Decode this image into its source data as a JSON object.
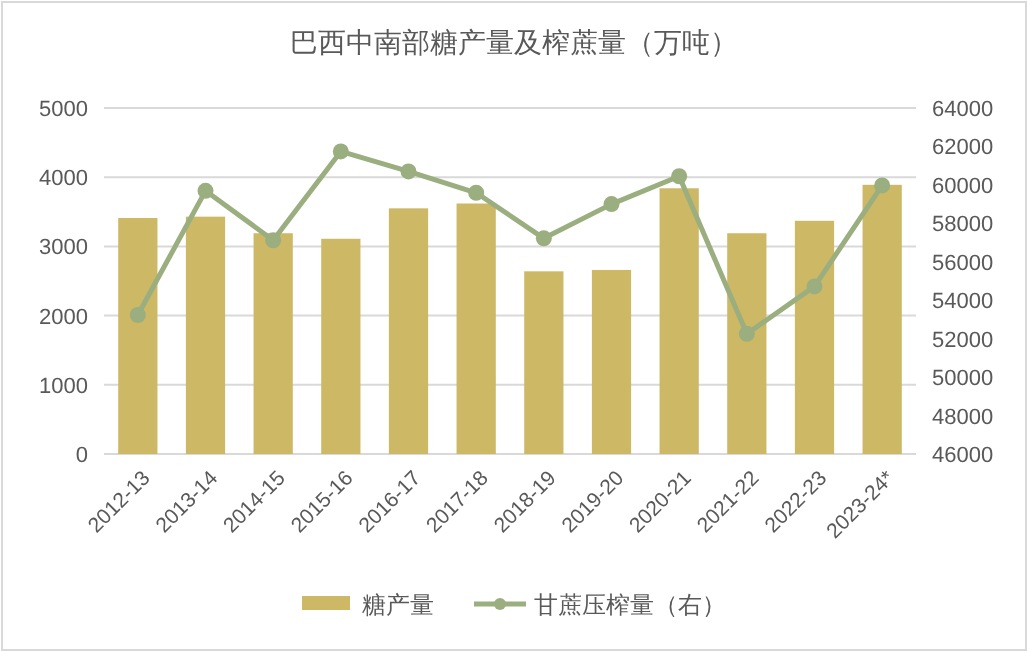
{
  "chart_data": {
    "type": "bar",
    "title": "巴西中南部糖产量及榨蔗量（万吨）",
    "categories": [
      "2012-13",
      "2013-14",
      "2014-15",
      "2015-16",
      "2016-17",
      "2017-18",
      "2018-19",
      "2019-20",
      "2020-21",
      "2021-22",
      "2022-23",
      "2023-24*"
    ],
    "series": [
      {
        "name": "糖产量",
        "color": "#cdb866",
        "values": [
          3410,
          3430,
          3190,
          3110,
          3550,
          3620,
          2640,
          2660,
          3840,
          3190,
          3370,
          3890
        ]
      },
      {
        "name": "甘蔗压榨量（右）",
        "type": "line",
        "axis": "y2",
        "color": "#9aae7f",
        "marker": "circle",
        "values": [
          53230,
          59690,
          57120,
          61740,
          60700,
          59590,
          57220,
          59000,
          60450,
          52250,
          54720,
          59970
        ]
      }
    ],
    "ylim": [
      0,
      5000
    ],
    "yticks": [
      0,
      1000,
      2000,
      3000,
      4000,
      5000
    ],
    "y2lim": [
      46000,
      64000
    ],
    "y2ticks": [
      46000,
      48000,
      50000,
      52000,
      54000,
      56000,
      58000,
      60000,
      62000,
      64000
    ],
    "grid": "y",
    "legend": "bottom"
  }
}
